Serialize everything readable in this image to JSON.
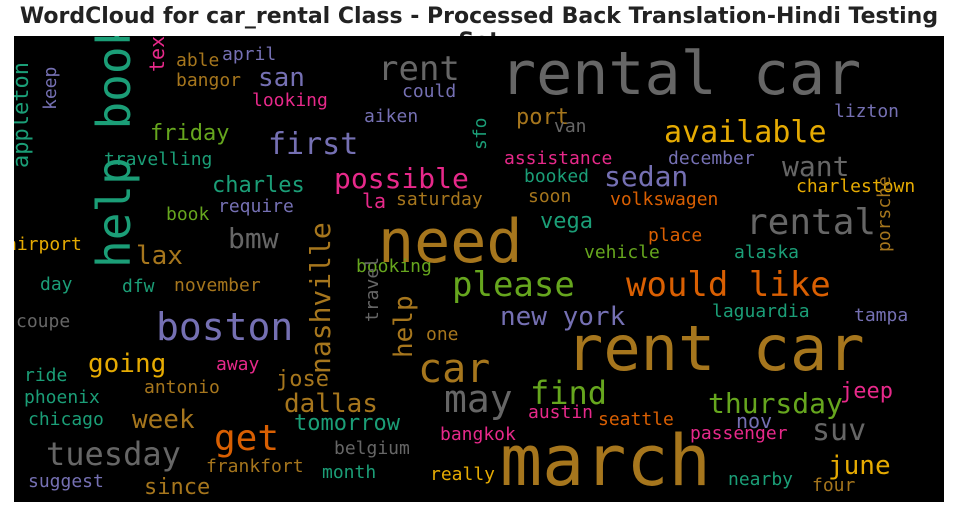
{
  "chart_data": {
    "type": "wordcloud",
    "title": "WordCloud for car_rental Class - Processed Back Translation-Hindi Testing Set",
    "background": "#000000",
    "words": [
      {
        "text": "rental car",
        "color": "#666666"
      },
      {
        "text": "rent car",
        "color": "#a6761d"
      },
      {
        "text": "march",
        "color": "#a6761d"
      },
      {
        "text": "need",
        "color": "#a6761d"
      },
      {
        "text": "help book",
        "color": "#1b9e77"
      },
      {
        "text": "boston",
        "color": "#7570b3"
      },
      {
        "text": "car",
        "color": "#a6761d"
      },
      {
        "text": "would like",
        "color": "#d95f02"
      },
      {
        "text": "please",
        "color": "#66a61e"
      },
      {
        "text": "rental",
        "color": "#666666"
      },
      {
        "text": "may",
        "color": "#666666"
      },
      {
        "text": "available",
        "color": "#e6ab02"
      },
      {
        "text": "get",
        "color": "#d95f02"
      },
      {
        "text": "tuesday",
        "color": "#666666"
      },
      {
        "text": "rent",
        "color": "#666666"
      },
      {
        "text": "find",
        "color": "#66a61e"
      },
      {
        "text": "possible",
        "color": "#e7298a"
      },
      {
        "text": "first",
        "color": "#7570b3"
      },
      {
        "text": "nashville",
        "color": "#a6761d"
      },
      {
        "text": "thursday",
        "color": "#66a61e"
      },
      {
        "text": "sedan",
        "color": "#7570b3"
      },
      {
        "text": "new york",
        "color": "#7570b3"
      },
      {
        "text": "want",
        "color": "#666666"
      },
      {
        "text": "suv",
        "color": "#666666"
      },
      {
        "text": "bmw",
        "color": "#666666"
      },
      {
        "text": "going",
        "color": "#e6ab02"
      },
      {
        "text": "week",
        "color": "#a6761d"
      },
      {
        "text": "dallas",
        "color": "#a6761d"
      },
      {
        "text": "lax",
        "color": "#a6761d"
      },
      {
        "text": "san",
        "color": "#7570b3"
      },
      {
        "text": "june",
        "color": "#e6ab02"
      },
      {
        "text": "help",
        "color": "#a6761d"
      },
      {
        "text": "friday",
        "color": "#66a61e"
      },
      {
        "text": "charles",
        "color": "#1b9e77"
      },
      {
        "text": "vega",
        "color": "#1b9e77"
      },
      {
        "text": "port",
        "color": "#a6761d"
      },
      {
        "text": "jeep",
        "color": "#e7298a"
      },
      {
        "text": "tomorrow",
        "color": "#1b9e77"
      },
      {
        "text": "jose",
        "color": "#a6761d"
      },
      {
        "text": "appleton",
        "color": "#1b9e77"
      },
      {
        "text": "texas",
        "color": "#e7298a"
      },
      {
        "text": "since",
        "color": "#a6761d"
      },
      {
        "text": "la",
        "color": "#e7298a"
      },
      {
        "text": "nov",
        "color": "#7570b3"
      },
      {
        "text": "charlestown",
        "color": "#e6ab02"
      },
      {
        "text": "looking",
        "color": "#e7298a"
      },
      {
        "text": "lizton",
        "color": "#7570b3"
      },
      {
        "text": "saturday",
        "color": "#a6761d"
      },
      {
        "text": "volkswagen",
        "color": "#d95f02"
      },
      {
        "text": "assistance",
        "color": "#e7298a"
      },
      {
        "text": "december",
        "color": "#7570b3"
      },
      {
        "text": "place",
        "color": "#d95f02"
      },
      {
        "text": "vehicle",
        "color": "#66a61e"
      },
      {
        "text": "alaska",
        "color": "#1b9e77"
      },
      {
        "text": "laguardia",
        "color": "#1b9e77"
      },
      {
        "text": "porsche",
        "color": "#a6761d"
      },
      {
        "text": "tampa",
        "color": "#7570b3"
      },
      {
        "text": "frankfort",
        "color": "#a6761d"
      },
      {
        "text": "belgium",
        "color": "#666666"
      },
      {
        "text": "bangkok",
        "color": "#e7298a"
      },
      {
        "text": "passenger",
        "color": "#e7298a"
      },
      {
        "text": "seattle",
        "color": "#d95f02"
      },
      {
        "text": "austin",
        "color": "#e7298a"
      },
      {
        "text": "antonio",
        "color": "#a6761d"
      },
      {
        "text": "november",
        "color": "#a6761d"
      },
      {
        "text": "booking",
        "color": "#66a61e"
      },
      {
        "text": "require",
        "color": "#7570b3"
      },
      {
        "text": "book",
        "color": "#66a61e"
      },
      {
        "text": "travelling",
        "color": "#1b9e77"
      },
      {
        "text": "keep",
        "color": "#7570b3"
      },
      {
        "text": "airport",
        "color": "#e6ab02"
      },
      {
        "text": "day",
        "color": "#1b9e77"
      },
      {
        "text": "dfw",
        "color": "#1b9e77"
      },
      {
        "text": "coupe",
        "color": "#666666"
      },
      {
        "text": "ride",
        "color": "#1b9e77"
      },
      {
        "text": "phoenix",
        "color": "#1b9e77"
      },
      {
        "text": "chicago",
        "color": "#1b9e77"
      },
      {
        "text": "suggest",
        "color": "#7570b3"
      },
      {
        "text": "away",
        "color": "#e7298a"
      },
      {
        "text": "travel",
        "color": "#666666"
      },
      {
        "text": "one",
        "color": "#a6761d"
      },
      {
        "text": "month",
        "color": "#1b9e77"
      },
      {
        "text": "really",
        "color": "#e6ab02"
      },
      {
        "text": "nearby",
        "color": "#1b9e77"
      },
      {
        "text": "four",
        "color": "#a6761d"
      },
      {
        "text": "booked",
        "color": "#1b9e77"
      },
      {
        "text": "soon",
        "color": "#a6761d"
      },
      {
        "text": "sfo",
        "color": "#1b9e77"
      },
      {
        "text": "van",
        "color": "#666666"
      },
      {
        "text": "could",
        "color": "#7570b3"
      },
      {
        "text": "aiken",
        "color": "#7570b3"
      },
      {
        "text": "april",
        "color": "#7570b3"
      },
      {
        "text": "able",
        "color": "#a6761d"
      },
      {
        "text": "bangor",
        "color": "#a6761d"
      }
    ]
  }
}
